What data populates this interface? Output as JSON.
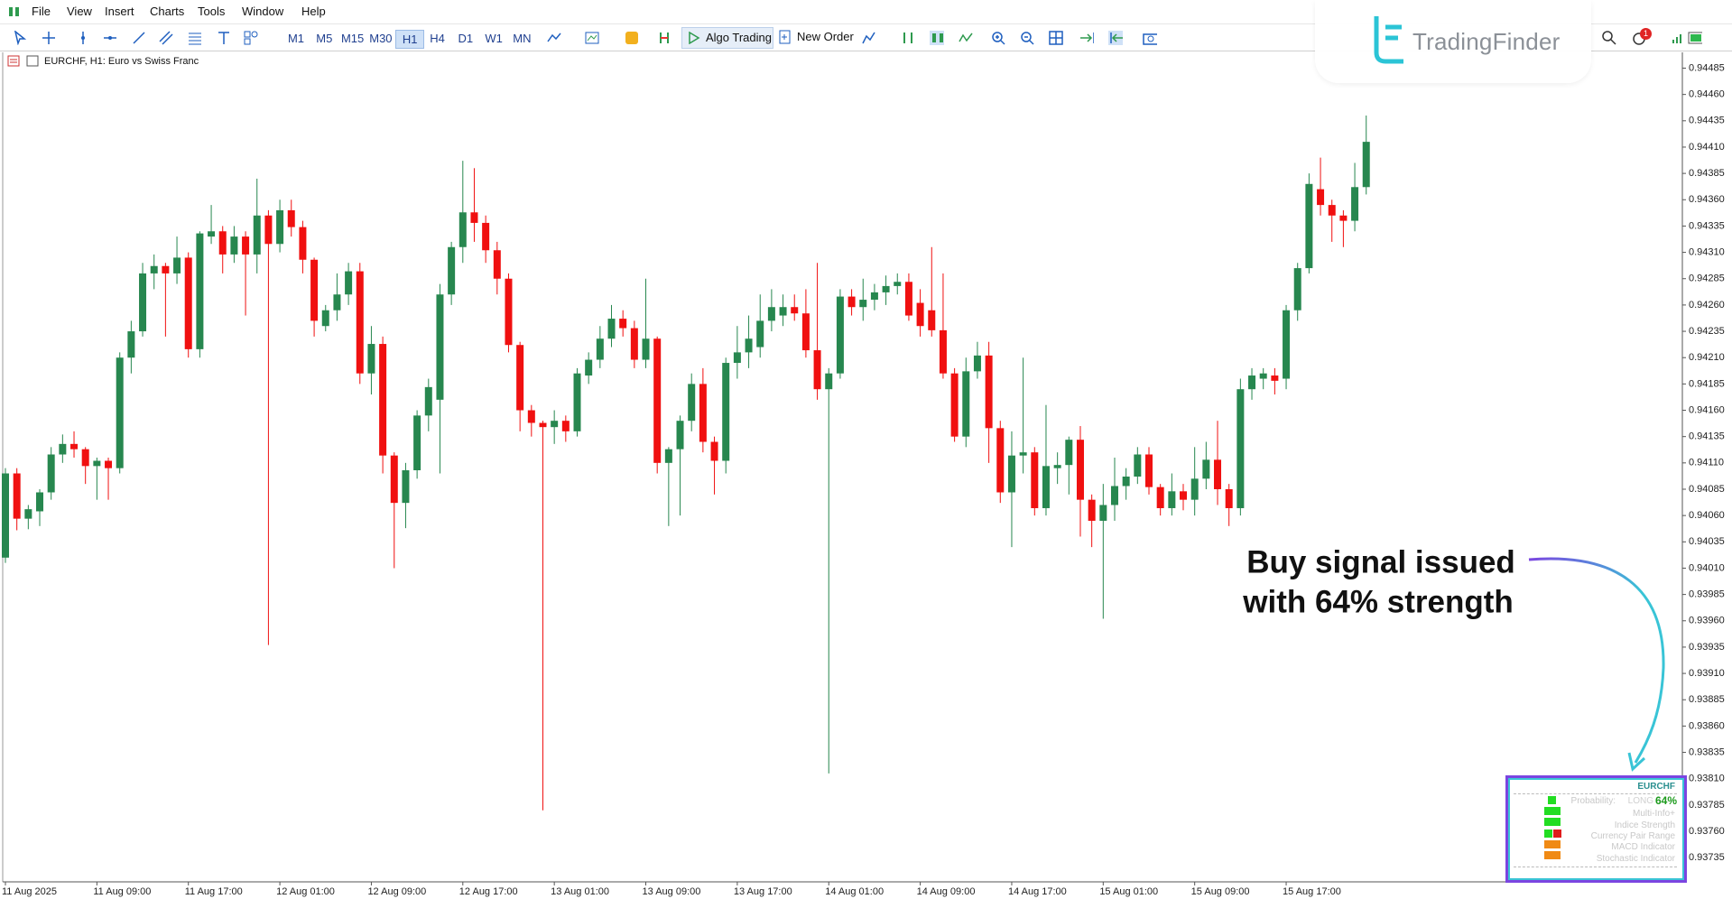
{
  "menu": [
    "File",
    "View",
    "Insert",
    "Charts",
    "Tools",
    "Window",
    "Help"
  ],
  "toolbar": {
    "timeframes": [
      "M1",
      "M5",
      "M15",
      "M30",
      "H1",
      "H4",
      "D1",
      "W1",
      "MN"
    ],
    "algo_trading": "Algo Trading",
    "new_order": "New Order"
  },
  "logo": "TradingFinder",
  "notification_count": "1",
  "chart_header": "EURCHF, H1:  Euro vs Swiss Franc",
  "dashboard": {
    "symbol": "EURCHF",
    "probability_label": "Probability:",
    "direction": "LONG",
    "strength": "64%",
    "rows": [
      "Multi-Info+",
      "Indice Strength",
      "Currency Pair Range",
      "MACD Indicator",
      "Stochastic Indicator"
    ]
  },
  "chart_data": {
    "type": "candlestick",
    "up_color": "#27874f",
    "down_color": "#f01010",
    "grid": false,
    "annotations": [
      "Buy signal issued",
      "with 64% strength"
    ],
    "categories": [
      "11 Aug 2025",
      null,
      null,
      null,
      null,
      null,
      null,
      null,
      "11 Aug 09:00",
      null,
      null,
      null,
      null,
      null,
      null,
      null,
      "11 Aug 17:00",
      null,
      null,
      null,
      null,
      null,
      null,
      null,
      "12 Aug 01:00",
      null,
      null,
      null,
      null,
      null,
      null,
      null,
      "12 Aug 09:00",
      null,
      null,
      null,
      null,
      null,
      null,
      null,
      "12 Aug 17:00",
      null,
      null,
      null,
      null,
      null,
      null,
      null,
      "13 Aug 01:00",
      null,
      null,
      null,
      null,
      null,
      null,
      null,
      "13 Aug 09:00",
      null,
      null,
      null,
      null,
      null,
      null,
      null,
      "13 Aug 17:00",
      null,
      null,
      null,
      null,
      null,
      null,
      null,
      "14 Aug 01:00",
      null,
      null,
      null,
      null,
      null,
      null,
      null,
      "14 Aug 09:00",
      null,
      null,
      null,
      null,
      null,
      null,
      null,
      "14 Aug 17:00",
      null,
      null,
      null,
      null,
      null,
      null,
      null,
      "15 Aug 01:00",
      null,
      null,
      null,
      null,
      null,
      null,
      null,
      "15 Aug 09:00",
      null,
      null,
      null,
      null,
      null,
      null,
      null,
      "15 Aug 17:00",
      null,
      null,
      null,
      null,
      null,
      null,
      null
    ],
    "open": [
      0.9402,
      0.941,
      0.94057,
      0.94064,
      0.94082,
      0.94118,
      0.94128,
      0.94123,
      0.94107,
      0.94112,
      0.94105,
      0.9421,
      0.94235,
      0.9429,
      0.94297,
      0.9429,
      0.94305,
      0.94218,
      0.94325,
      0.9433,
      0.94308,
      0.94325,
      0.94308,
      0.94345,
      0.94318,
      0.9435,
      0.94334,
      0.94303,
      0.9424,
      0.94255,
      0.9427,
      0.94292,
      0.94195,
      0.94223,
      0.94117,
      0.94072,
      0.94103,
      0.94155,
      0.9417,
      0.9427,
      0.94315,
      0.94348,
      0.94338,
      0.94312,
      0.94285,
      0.94222,
      0.9416,
      0.94148,
      0.94144,
      0.9415,
      0.9414,
      0.94193,
      0.94208,
      0.94228,
      0.94247,
      0.94238,
      0.94208,
      0.94228,
      0.9411,
      0.94123,
      0.9415,
      0.94185,
      0.9413,
      0.94112,
      0.94205,
      0.94215,
      0.9422,
      0.94245,
      0.9425,
      0.94258,
      0.94252,
      0.94217,
      0.9418,
      0.94195,
      0.94268,
      0.94258,
      0.94265,
      0.94272,
      0.94278,
      0.94282,
      0.94262,
      0.94255,
      0.94236,
      0.94195,
      0.94135,
      0.94197,
      0.94212,
      0.94143,
      0.94082,
      0.94117,
      0.9412,
      0.94067,
      0.94105,
      0.94108,
      0.94132,
      0.94075,
      0.94055,
      0.9407,
      0.94088,
      0.94097,
      0.94118,
      0.94087,
      0.94067,
      0.94083,
      0.94075,
      0.94095,
      0.94113,
      0.94085,
      0.94067,
      0.9418,
      0.9419,
      0.94193,
      0.9419,
      0.94255,
      0.94295,
      0.9437,
      0.94355,
      0.94345,
      0.9434,
      0.94372
    ],
    "high": [
      0.94105,
      0.94105,
      0.9407,
      0.94085,
      0.94125,
      0.94137,
      0.9414,
      0.94125,
      0.94115,
      0.94115,
      0.94215,
      0.94245,
      0.943,
      0.94308,
      0.943,
      0.94325,
      0.9431,
      0.9433,
      0.94355,
      0.94335,
      0.94335,
      0.9433,
      0.9438,
      0.9435,
      0.9436,
      0.9436,
      0.9434,
      0.94305,
      0.9426,
      0.9429,
      0.943,
      0.943,
      0.9424,
      0.9423,
      0.9412,
      0.9411,
      0.9416,
      0.9419,
      0.9428,
      0.9432,
      0.94397,
      0.9439,
      0.94345,
      0.9432,
      0.9429,
      0.94225,
      0.94165,
      0.9415,
      0.9416,
      0.94155,
      0.942,
      0.94215,
      0.9424,
      0.9426,
      0.94255,
      0.94245,
      0.94285,
      0.9423,
      0.94125,
      0.94155,
      0.94195,
      0.942,
      0.94135,
      0.9421,
      0.9424,
      0.9425,
      0.9427,
      0.94275,
      0.9427,
      0.9427,
      0.94275,
      0.943,
      0.942,
      0.94275,
      0.94275,
      0.94285,
      0.9428,
      0.94288,
      0.9429,
      0.9429,
      0.94275,
      0.94315,
      0.9429,
      0.942,
      0.9421,
      0.94225,
      0.94225,
      0.9415,
      0.9414,
      0.9421,
      0.94125,
      0.94165,
      0.9412,
      0.94135,
      0.94145,
      0.9408,
      0.9409,
      0.94115,
      0.94105,
      0.94125,
      0.94125,
      0.9409,
      0.941,
      0.9409,
      0.94125,
      0.9413,
      0.9415,
      0.9409,
      0.9419,
      0.942,
      0.942,
      0.942,
      0.9426,
      0.943,
      0.94385,
      0.944,
      0.9436,
      0.9435,
      0.94395,
      0.9444
    ],
    "low": [
      0.94015,
      0.94046,
      0.94047,
      0.9405,
      0.94075,
      0.9411,
      0.94115,
      0.9409,
      0.94075,
      0.94075,
      0.941,
      0.94195,
      0.9423,
      0.94275,
      0.9423,
      0.9428,
      0.9421,
      0.9421,
      0.94318,
      0.9429,
      0.943,
      0.9425,
      0.9429,
      0.93937,
      0.9431,
      0.94325,
      0.9429,
      0.9423,
      0.94235,
      0.94245,
      0.9426,
      0.94185,
      0.94175,
      0.941,
      0.9401,
      0.94048,
      0.94095,
      0.9414,
      0.941,
      0.9426,
      0.943,
      0.9432,
      0.943,
      0.9427,
      0.94215,
      0.9414,
      0.94135,
      0.9378,
      0.94128,
      0.9413,
      0.94135,
      0.94185,
      0.942,
      0.9422,
      0.9423,
      0.942,
      0.942,
      0.941,
      0.9405,
      0.9406,
      0.9414,
      0.9412,
      0.9408,
      0.941,
      0.9419,
      0.942,
      0.9421,
      0.94235,
      0.9424,
      0.94245,
      0.9421,
      0.9417,
      0.93815,
      0.9419,
      0.9425,
      0.94245,
      0.94255,
      0.9426,
      0.9427,
      0.94245,
      0.9423,
      0.9423,
      0.9419,
      0.9413,
      0.94125,
      0.9419,
      0.9411,
      0.94072,
      0.9403,
      0.941,
      0.9406,
      0.9406,
      0.9409,
      0.9408,
      0.9404,
      0.9403,
      0.93962,
      0.94055,
      0.94075,
      0.9409,
      0.9408,
      0.9406,
      0.9406,
      0.94065,
      0.9406,
      0.94085,
      0.9407,
      0.9405,
      0.9406,
      0.9417,
      0.9418,
      0.94175,
      0.9418,
      0.94245,
      0.9429,
      0.94345,
      0.9432,
      0.94315,
      0.9433,
      0.94365
    ],
    "close": [
      0.941,
      0.94057,
      0.94066,
      0.94082,
      0.94118,
      0.94128,
      0.94123,
      0.94107,
      0.94112,
      0.94105,
      0.9421,
      0.94235,
      0.9429,
      0.94297,
      0.9429,
      0.94305,
      0.94218,
      0.94328,
      0.9433,
      0.94308,
      0.94325,
      0.94308,
      0.94345,
      0.94318,
      0.9435,
      0.94334,
      0.94303,
      0.94245,
      0.94255,
      0.9427,
      0.94292,
      0.94195,
      0.94223,
      0.94117,
      0.94072,
      0.94103,
      0.94155,
      0.94182,
      0.9427,
      0.94315,
      0.94348,
      0.94338,
      0.94312,
      0.94285,
      0.94222,
      0.9416,
      0.94148,
      0.94144,
      0.9415,
      0.9414,
      0.94195,
      0.94208,
      0.94228,
      0.94247,
      0.94238,
      0.94208,
      0.94228,
      0.9411,
      0.94123,
      0.9415,
      0.94185,
      0.9413,
      0.94112,
      0.94205,
      0.94215,
      0.94228,
      0.94245,
      0.94258,
      0.94258,
      0.94252,
      0.94217,
      0.9418,
      0.94195,
      0.94268,
      0.94258,
      0.94265,
      0.94272,
      0.94278,
      0.94282,
      0.9425,
      0.9424,
      0.94236,
      0.94195,
      0.94135,
      0.94197,
      0.94212,
      0.94143,
      0.94082,
      0.94117,
      0.9412,
      0.94067,
      0.94107,
      0.94108,
      0.94132,
      0.94075,
      0.94055,
      0.9407,
      0.94088,
      0.94097,
      0.94118,
      0.94087,
      0.94067,
      0.94083,
      0.94075,
      0.94095,
      0.94113,
      0.94085,
      0.94067,
      0.9418,
      0.94193,
      0.94195,
      0.94188,
      0.94255,
      0.94295,
      0.94375,
      0.94355,
      0.94345,
      0.9434,
      0.94372,
      0.94415
    ],
    "ylim": [
      0.93712,
      0.945
    ],
    "yticks": [
      0.94485,
      {
        "value": 0.9446,
        "label": "0.94460"
      },
      0.94435,
      {
        "value": 0.9441,
        "label": "0.94410"
      },
      0.94385,
      {
        "value": 0.9436,
        "label": "0.94360"
      },
      0.94335,
      {
        "value": 0.9431,
        "label": "0.94310"
      },
      0.94285,
      {
        "value": 0.9426,
        "label": "0.94260"
      },
      0.94235,
      {
        "value": 0.9421,
        "label": "0.94210"
      },
      0.94185,
      {
        "value": 0.9416,
        "label": "0.94160"
      },
      0.94135,
      {
        "value": 0.9411,
        "label": "0.94110"
      },
      0.94085,
      {
        "value": 0.9406,
        "label": "0.94060"
      },
      0.94035,
      {
        "value": 0.9401,
        "label": "0.94010"
      },
      0.93985,
      {
        "value": 0.9396,
        "label": "0.93960"
      },
      0.93935,
      {
        "value": 0.9391,
        "label": "0.93910"
      },
      0.93885,
      {
        "value": 0.9386,
        "label": "0.93860"
      },
      0.93835,
      {
        "value": 0.9381,
        "label": "0.93810"
      },
      0.93785,
      {
        "value": 0.9376,
        "label": "0.93760"
      },
      0.93735
    ]
  }
}
